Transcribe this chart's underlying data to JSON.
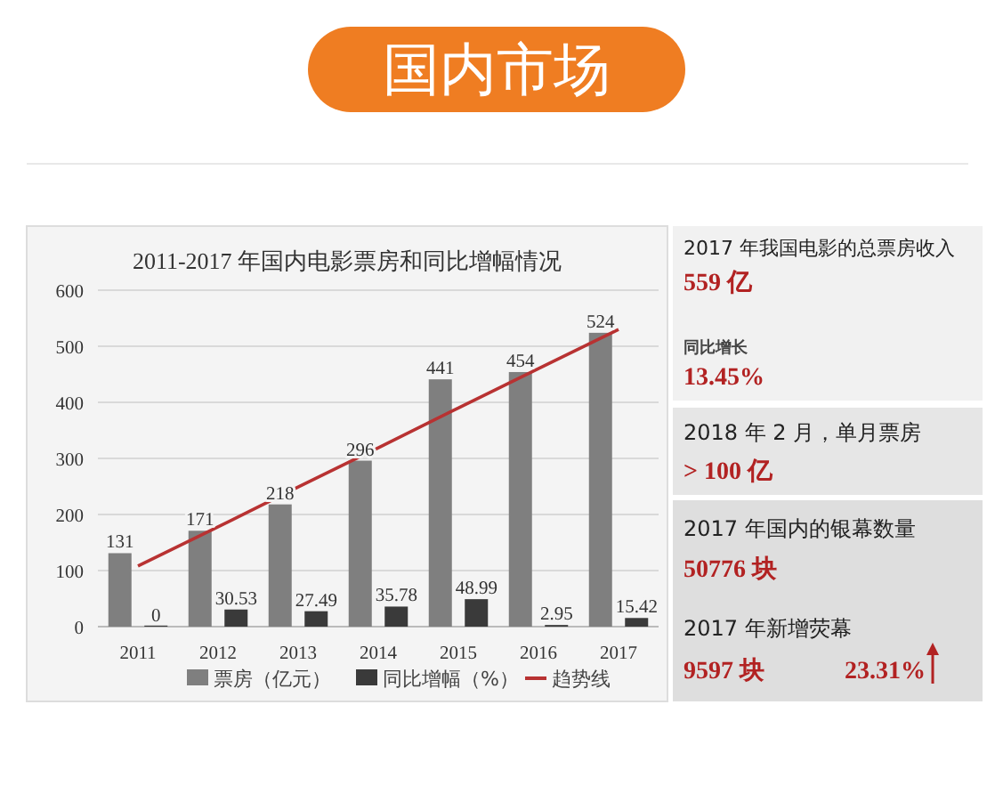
{
  "chart_data": [
    {
      "type": "other",
      "title": "国内市场"
    },
    {
      "type": "bar",
      "title": "2011-2017 年国内电影票房和同比增幅情况",
      "categories": [
        "2011",
        "2012",
        "2013",
        "2014",
        "2015",
        "2016",
        "2017"
      ],
      "series": [
        {
          "name": "票房（亿元）",
          "color": "#7f7f7f",
          "values": [
            131,
            171,
            218,
            296,
            441,
            454,
            524
          ],
          "value_labels": [
            "131",
            "171",
            "218",
            "296",
            "441",
            "454",
            "524"
          ]
        },
        {
          "name": "同比增幅（%）",
          "color": "#3a3a3a",
          "values": [
            0,
            30.53,
            27.49,
            35.78,
            48.99,
            2.95,
            15.42
          ],
          "value_labels": [
            "0",
            "30.53",
            "27.49",
            "35.78",
            "48.99",
            "2.95",
            "15.42"
          ]
        },
        {
          "name": "趋势线",
          "type": "line",
          "color": "#b83232",
          "values": [
            108,
            178,
            249,
            319,
            390,
            460,
            530
          ]
        }
      ],
      "ylim": [
        0,
        600
      ],
      "yticks": [
        0,
        100,
        200,
        300,
        400,
        500,
        600
      ],
      "grid": "y",
      "legend": "bottom"
    },
    {
      "type": "other",
      "annotations": [
        "2017 年我国电影的总票房收入",
        "559 亿",
        "同比增长",
        "13.45%",
        "2018 年 2 月，单月票房",
        "> 100 亿",
        "2017 年国内的银幕数量",
        "50776 块",
        "2017 年新增荧幕",
        "9597 块",
        "23.31%"
      ]
    }
  ]
}
